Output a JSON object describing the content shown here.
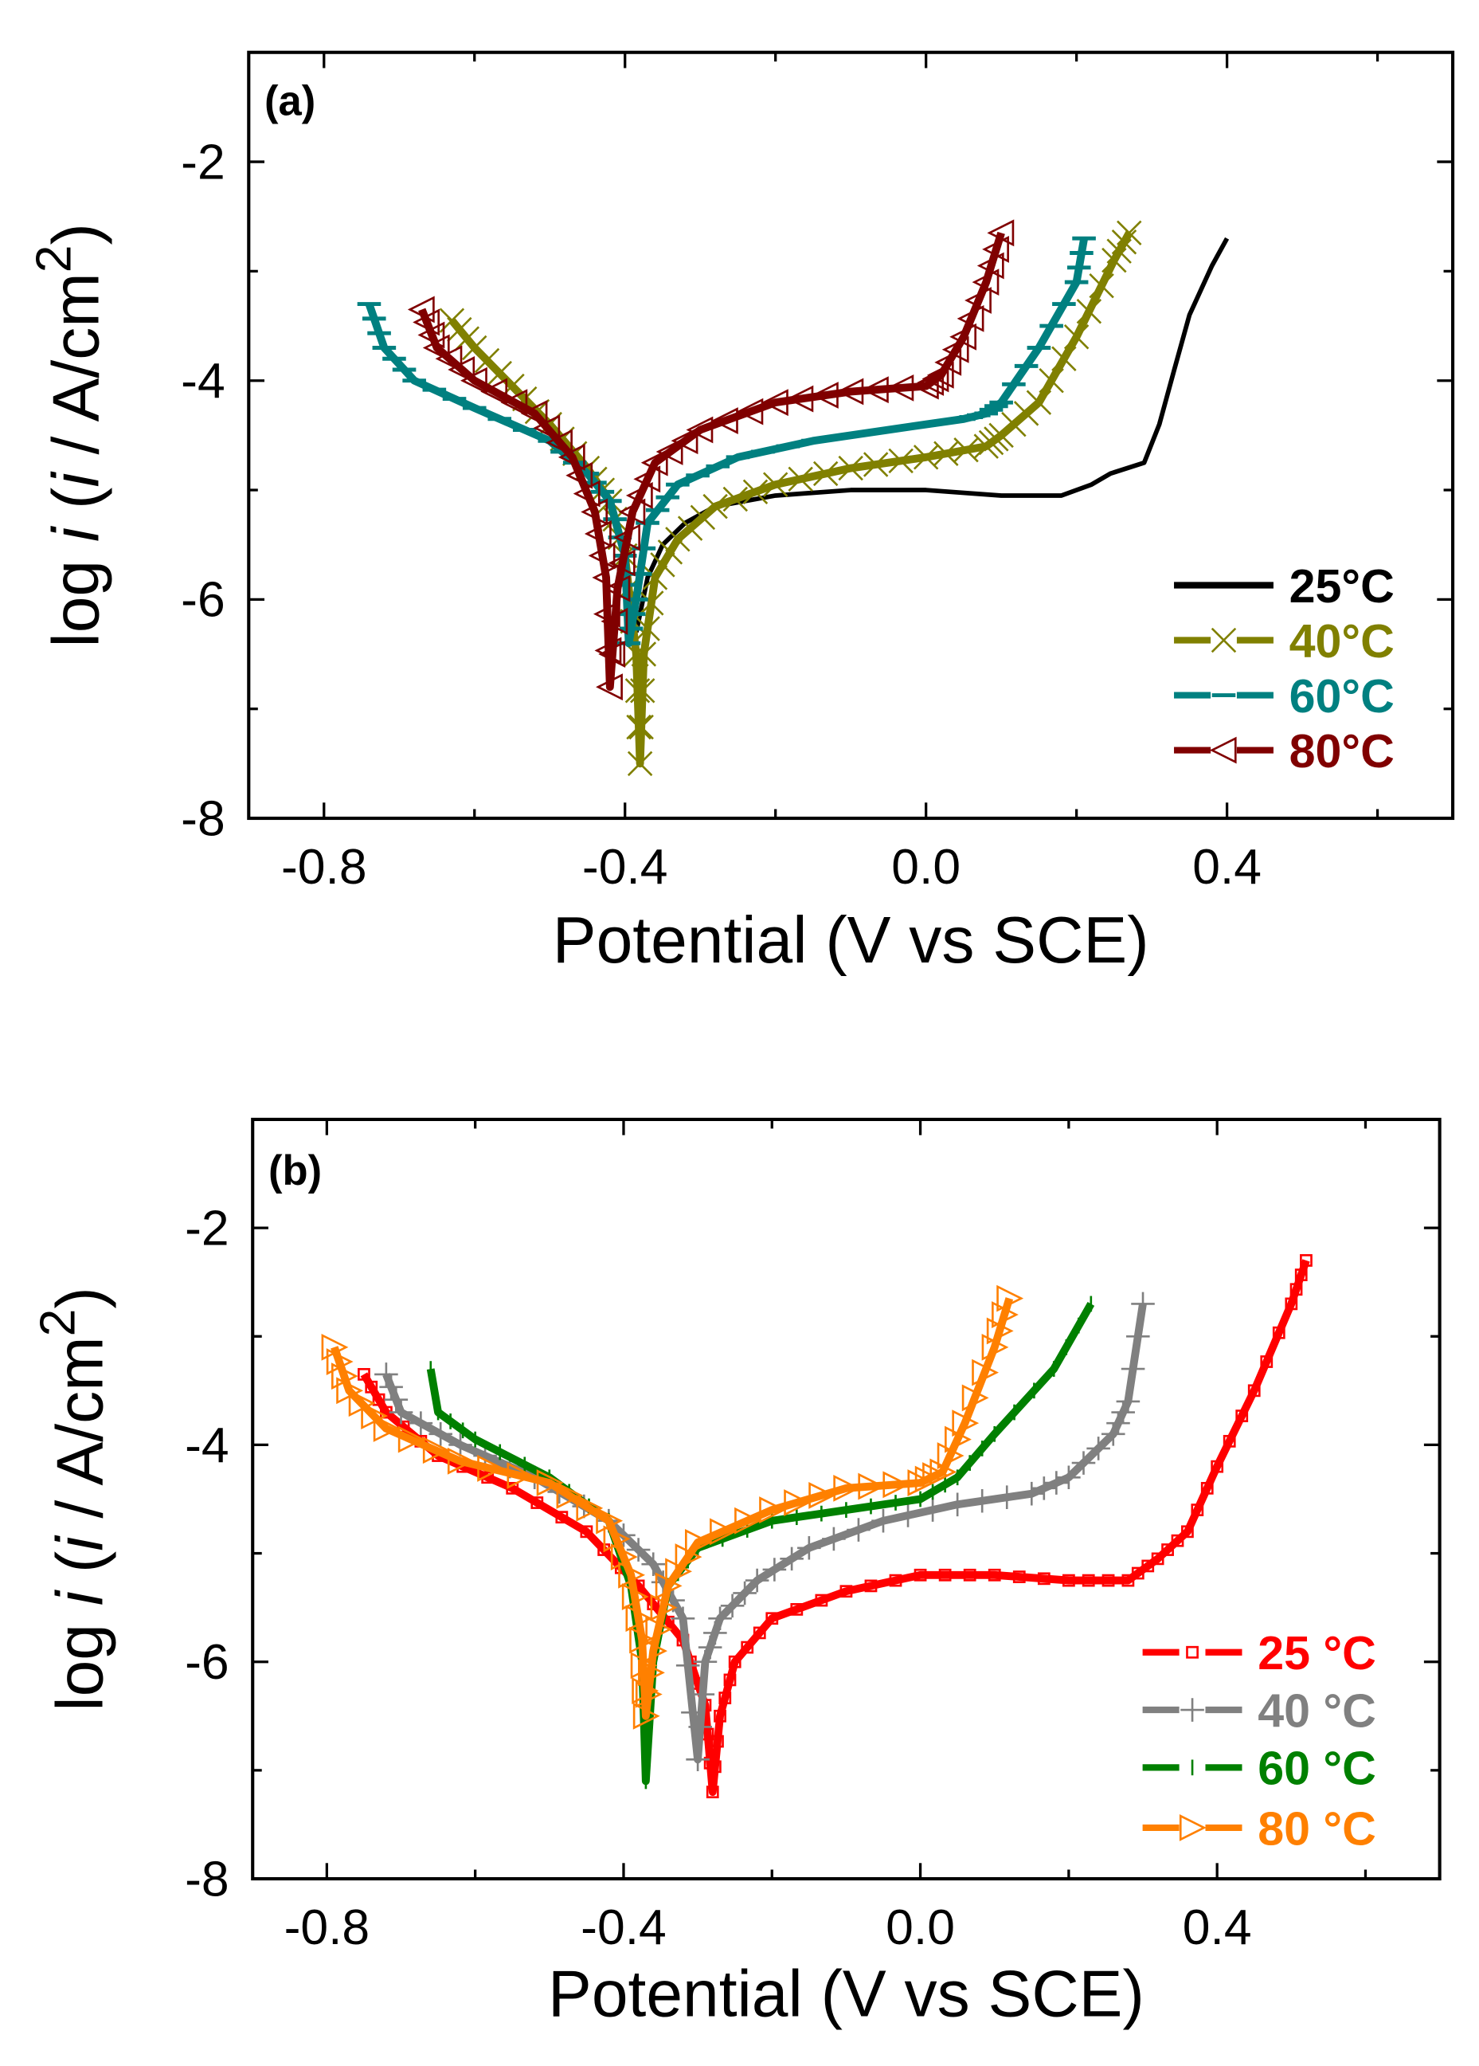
{
  "chart_data": [
    {
      "type": "line",
      "panel_label": "(a)",
      "xlabel": "Potential (V vs SCE)",
      "ylabel_parts": [
        "log ",
        "i",
        " (",
        "i",
        " / A/cm",
        "2",
        ")"
      ],
      "xlim": [
        -0.9,
        0.7
      ],
      "ylim": [
        -8,
        -1
      ],
      "xticks": [
        -0.8,
        -0.4,
        0.0,
        0.4
      ],
      "xtick_labels": [
        "-0.8",
        "-0.4",
        "0.0",
        "0.4"
      ],
      "yticks": [
        -2,
        -4,
        -6,
        -8
      ],
      "ytick_labels": [
        "-2",
        "-4",
        "-6",
        "-8"
      ],
      "legend_position": "bottom-right",
      "series": [
        {
          "name": "25°C",
          "color": "#000000",
          "marker": "none",
          "points": [
            [
              -0.385,
              -6.3
            ],
            [
              -0.37,
              -5.8
            ],
            [
              -0.35,
              -5.5
            ],
            [
              -0.32,
              -5.3
            ],
            [
              -0.28,
              -5.15
            ],
            [
              -0.2,
              -5.05
            ],
            [
              -0.1,
              -5.0
            ],
            [
              0.0,
              -5.0
            ],
            [
              0.1,
              -5.05
            ],
            [
              0.18,
              -5.05
            ],
            [
              0.22,
              -4.95
            ],
            [
              0.245,
              -4.85
            ],
            [
              0.29,
              -4.75
            ],
            [
              0.31,
              -4.4
            ],
            [
              0.33,
              -3.9
            ],
            [
              0.35,
              -3.4
            ],
            [
              0.38,
              -2.95
            ],
            [
              0.4,
              -2.7
            ]
          ]
        },
        {
          "name": "40°C",
          "color": "#808000",
          "marker": "x",
          "points": [
            [
              -0.63,
              -3.45
            ],
            [
              -0.6,
              -3.7
            ],
            [
              -0.55,
              -4.05
            ],
            [
              -0.5,
              -4.4
            ],
            [
              -0.45,
              -4.8
            ],
            [
              -0.42,
              -5.1
            ],
            [
              -0.4,
              -5.6
            ],
            [
              -0.385,
              -6.5
            ],
            [
              -0.38,
              -7.5
            ],
            [
              -0.375,
              -6.5
            ],
            [
              -0.36,
              -5.8
            ],
            [
              -0.33,
              -5.45
            ],
            [
              -0.28,
              -5.15
            ],
            [
              -0.2,
              -4.95
            ],
            [
              -0.1,
              -4.8
            ],
            [
              0.0,
              -4.7
            ],
            [
              0.08,
              -4.6
            ],
            [
              0.1,
              -4.5
            ],
            [
              0.15,
              -4.2
            ],
            [
              0.2,
              -3.6
            ],
            [
              0.25,
              -2.9
            ],
            [
              0.27,
              -2.65
            ]
          ]
        },
        {
          "name": "60°C",
          "color": "#008080",
          "marker": "dash",
          "points": [
            [
              -0.74,
              -3.3
            ],
            [
              -0.72,
              -3.7
            ],
            [
              -0.68,
              -4.0
            ],
            [
              -0.6,
              -4.25
            ],
            [
              -0.5,
              -4.55
            ],
            [
              -0.45,
              -4.85
            ],
            [
              -0.42,
              -5.1
            ],
            [
              -0.4,
              -5.6
            ],
            [
              -0.395,
              -6.4
            ],
            [
              -0.385,
              -6.0
            ],
            [
              -0.37,
              -5.3
            ],
            [
              -0.33,
              -4.95
            ],
            [
              -0.25,
              -4.7
            ],
            [
              -0.15,
              -4.55
            ],
            [
              0.0,
              -4.4
            ],
            [
              0.05,
              -4.35
            ],
            [
              0.08,
              -4.3
            ],
            [
              0.1,
              -4.2
            ],
            [
              0.15,
              -3.7
            ],
            [
              0.2,
              -3.1
            ],
            [
              0.21,
              -2.7
            ]
          ]
        },
        {
          "name": "80°C",
          "color": "#800000",
          "marker": "triangle-left",
          "points": [
            [
              -0.67,
              -3.35
            ],
            [
              -0.65,
              -3.7
            ],
            [
              -0.6,
              -4.0
            ],
            [
              -0.52,
              -4.3
            ],
            [
              -0.47,
              -4.7
            ],
            [
              -0.44,
              -5.2
            ],
            [
              -0.425,
              -5.8
            ],
            [
              -0.42,
              -6.8
            ],
            [
              -0.41,
              -5.9
            ],
            [
              -0.39,
              -5.2
            ],
            [
              -0.36,
              -4.75
            ],
            [
              -0.3,
              -4.45
            ],
            [
              -0.2,
              -4.2
            ],
            [
              -0.1,
              -4.1
            ],
            [
              0.0,
              -4.05
            ],
            [
              0.02,
              -3.95
            ],
            [
              0.05,
              -3.6
            ],
            [
              0.08,
              -3.1
            ],
            [
              0.1,
              -2.65
            ]
          ]
        }
      ]
    },
    {
      "type": "line",
      "panel_label": "(b)",
      "xlabel": "Potential (V vs SCE)",
      "ylabel_parts": [
        "log ",
        "i",
        " (",
        "i",
        " / A/cm",
        "2",
        ")"
      ],
      "xlim": [
        -0.9,
        0.7
      ],
      "ylim": [
        -8,
        -1
      ],
      "xticks": [
        -0.8,
        -0.4,
        0.0,
        0.4
      ],
      "xtick_labels": [
        "-0.8",
        "-0.4",
        "0.0",
        "0.4"
      ],
      "yticks": [
        -2,
        -4,
        -6,
        -8
      ],
      "ytick_labels": [
        "-2",
        "-4",
        "-6",
        "-8"
      ],
      "legend_position": "bottom-right",
      "series": [
        {
          "name": "25 °C",
          "color": "#ff0000",
          "marker": "square",
          "points": [
            [
              -0.75,
              -3.35
            ],
            [
              -0.72,
              -3.7
            ],
            [
              -0.65,
              -4.1
            ],
            [
              -0.55,
              -4.4
            ],
            [
              -0.45,
              -4.8
            ],
            [
              -0.38,
              -5.3
            ],
            [
              -0.32,
              -5.8
            ],
            [
              -0.29,
              -6.4
            ],
            [
              -0.28,
              -7.2
            ],
            [
              -0.27,
              -6.5
            ],
            [
              -0.25,
              -6.0
            ],
            [
              -0.2,
              -5.6
            ],
            [
              -0.1,
              -5.35
            ],
            [
              0.0,
              -5.2
            ],
            [
              0.1,
              -5.2
            ],
            [
              0.2,
              -5.25
            ],
            [
              0.28,
              -5.25
            ],
            [
              0.32,
              -5.05
            ],
            [
              0.36,
              -4.8
            ],
            [
              0.4,
              -4.2
            ],
            [
              0.45,
              -3.5
            ],
            [
              0.5,
              -2.7
            ],
            [
              0.52,
              -2.3
            ]
          ]
        },
        {
          "name": "40 °C",
          "color": "#808080",
          "marker": "plus",
          "points": [
            [
              -0.72,
              -3.35
            ],
            [
              -0.7,
              -3.7
            ],
            [
              -0.62,
              -4.0
            ],
            [
              -0.52,
              -4.3
            ],
            [
              -0.42,
              -4.7
            ],
            [
              -0.36,
              -5.1
            ],
            [
              -0.32,
              -5.6
            ],
            [
              -0.3,
              -6.9
            ],
            [
              -0.29,
              -6.0
            ],
            [
              -0.27,
              -5.6
            ],
            [
              -0.22,
              -5.25
            ],
            [
              -0.15,
              -4.95
            ],
            [
              -0.05,
              -4.7
            ],
            [
              0.05,
              -4.55
            ],
            [
              0.15,
              -4.45
            ],
            [
              0.2,
              -4.3
            ],
            [
              0.26,
              -3.9
            ],
            [
              0.28,
              -3.6
            ],
            [
              0.3,
              -2.7
            ]
          ]
        },
        {
          "name": "60 °C",
          "color": "#008000",
          "marker": "vbar",
          "points": [
            [
              -0.66,
              -3.3
            ],
            [
              -0.65,
              -3.7
            ],
            [
              -0.6,
              -3.95
            ],
            [
              -0.5,
              -4.3
            ],
            [
              -0.42,
              -4.7
            ],
            [
              -0.39,
              -5.3
            ],
            [
              -0.375,
              -6.0
            ],
            [
              -0.37,
              -7.1
            ],
            [
              -0.36,
              -6.0
            ],
            [
              -0.34,
              -5.3
            ],
            [
              -0.3,
              -4.95
            ],
            [
              -0.2,
              -4.7
            ],
            [
              -0.1,
              -4.6
            ],
            [
              0.0,
              -4.5
            ],
            [
              0.05,
              -4.3
            ],
            [
              0.1,
              -3.9
            ],
            [
              0.18,
              -3.3
            ],
            [
              0.23,
              -2.7
            ]
          ]
        },
        {
          "name": "80 °C",
          "color": "#ff8000",
          "marker": "triangle-right",
          "points": [
            [
              -0.79,
              -3.1
            ],
            [
              -0.77,
              -3.5
            ],
            [
              -0.72,
              -3.85
            ],
            [
              -0.62,
              -4.15
            ],
            [
              -0.5,
              -4.35
            ],
            [
              -0.42,
              -4.7
            ],
            [
              -0.39,
              -5.2
            ],
            [
              -0.375,
              -5.8
            ],
            [
              -0.37,
              -6.5
            ],
            [
              -0.36,
              -5.9
            ],
            [
              -0.34,
              -5.3
            ],
            [
              -0.3,
              -4.9
            ],
            [
              -0.2,
              -4.6
            ],
            [
              -0.1,
              -4.4
            ],
            [
              0.0,
              -4.35
            ],
            [
              0.03,
              -4.25
            ],
            [
              0.06,
              -3.8
            ],
            [
              0.1,
              -3.1
            ],
            [
              0.12,
              -2.65
            ]
          ]
        }
      ]
    }
  ]
}
